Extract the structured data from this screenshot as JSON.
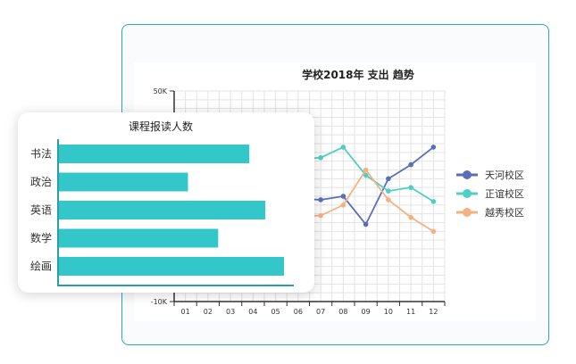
{
  "chart_data": [
    {
      "type": "line",
      "title": "学校2018年 支出 趋势",
      "x": [
        "01",
        "02",
        "03",
        "04",
        "05",
        "06",
        "07",
        "08",
        "09",
        "10",
        "11",
        "12"
      ],
      "ylim": [
        -10000,
        50000
      ],
      "yticks": [
        "50K",
        "-10K"
      ],
      "grid": true,
      "legend_position": "right",
      "series": [
        {
          "name": "天河校区",
          "color": "#5b6fb8",
          "values": [
            null,
            null,
            null,
            null,
            null,
            null,
            19000,
            20000,
            12000,
            25000,
            29000,
            34000
          ],
          "partial_start": 21000
        },
        {
          "name": "正谊校区",
          "color": "#4fcfc4",
          "values": [
            null,
            null,
            null,
            null,
            null,
            null,
            31000,
            34000,
            26000,
            21500,
            22500,
            18500
          ],
          "partial_start": 28000
        },
        {
          "name": "越秀校区",
          "color": "#f3b282",
          "values": [
            null,
            null,
            null,
            null,
            null,
            null,
            14500,
            17500,
            27500,
            19000,
            14000,
            10000
          ],
          "partial_start": 13000
        }
      ]
    },
    {
      "type": "bar",
      "orientation": "horizontal",
      "title": "课程报读人数",
      "color": "#34c7c9",
      "categories": [
        "书法",
        "政治",
        "英语",
        "数学",
        "绘画"
      ],
      "values": [
        215,
        146,
        233,
        180,
        254
      ],
      "xmax": 265
    }
  ]
}
